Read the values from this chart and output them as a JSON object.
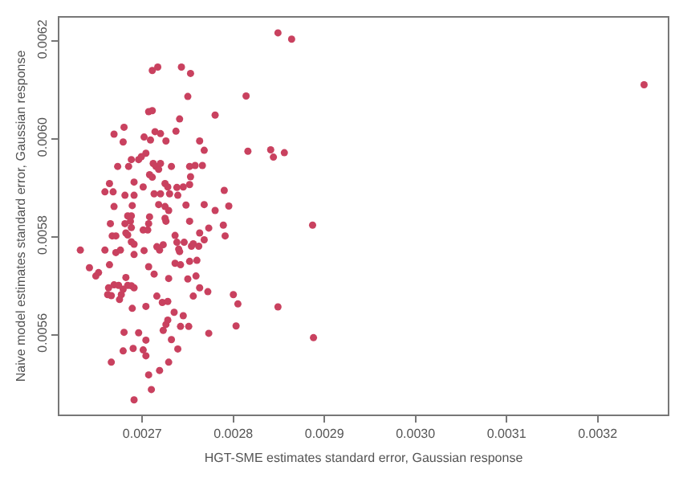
{
  "chart_data": {
    "type": "scatter",
    "xlabel": "HGT-SME estimates standard error, Gaussian response",
    "ylabel": "Naive model estimates standard error, Gaussian response",
    "xlim": [
      0.002609,
      0.003277
    ],
    "ylim": [
      0.005437,
      0.006248
    ],
    "xticks": [
      0.0027,
      0.0028,
      0.0029,
      {
        "value": 0.003,
        "label": "0.0030"
      },
      0.0031,
      0.0032
    ],
    "yticks": [
      0.0056,
      0.0058,
      {
        "value": 0.006,
        "label": "0.0060"
      },
      0.0062
    ],
    "marker": "circle",
    "series": [
      {
        "color": "#c9415f",
        "x": [
          0.002711,
          0.002717,
          0.002743,
          0.002753,
          0.00275,
          0.002814,
          0.002707,
          0.002711,
          0.00278,
          0.002741,
          0.002669,
          0.00268,
          0.002679,
          0.002702,
          0.002709,
          0.002714,
          0.00272,
          0.002726,
          0.002737,
          0.002763,
          0.002704,
          0.002768,
          0.002816,
          0.002688,
          0.002696,
          0.002699,
          0.002685,
          0.002673,
          0.002712,
          0.002715,
          0.002718,
          0.00272,
          0.002732,
          0.002752,
          0.002758,
          0.002766,
          0.002708,
          0.002711,
          0.002691,
          0.002664,
          0.002659,
          0.002668,
          0.002701,
          0.002725,
          0.002728,
          0.002738,
          0.002745,
          0.002752,
          0.002753,
          0.002681,
          0.002691,
          0.002713,
          0.00272,
          0.00279,
          0.00273,
          0.002739,
          0.002669,
          0.002689,
          0.002718,
          0.002725,
          0.002729,
          0.002748,
          0.002768,
          0.002795,
          0.002684,
          0.002688,
          0.002725,
          0.002708,
          0.002665,
          0.002681,
          0.002687,
          0.002707,
          0.002726,
          0.002752,
          0.00278,
          0.002789,
          0.002701,
          0.002706,
          0.002667,
          0.002671,
          0.002682,
          0.002736,
          0.002763,
          0.002773,
          0.002791,
          0.002849,
          0.002864,
          0.003251,
          0.002841,
          0.002844,
          0.002856,
          0.002887,
          0.002849,
          0.002888,
          0.002632,
          0.002642,
          0.002649,
          0.002652,
          0.002659,
          0.002664,
          0.002671,
          0.002676,
          0.002684,
          0.002688,
          0.002691,
          0.002691,
          0.002688,
          0.002702,
          0.002707,
          0.002713,
          0.002716,
          0.002719,
          0.002723,
          0.002738,
          0.00274,
          0.002736,
          0.002742,
          0.002741,
          0.002746,
          0.002754,
          0.002756,
          0.002762,
          0.002768,
          0.002752,
          0.00276,
          0.002729,
          0.00275,
          0.002759,
          0.002763,
          0.002772,
          0.002756,
          0.002663,
          0.002662,
          0.002666,
          0.002669,
          0.002674,
          0.002677,
          0.002675,
          0.002679,
          0.002682,
          0.002684,
          0.002688,
          0.002691,
          0.002689,
          0.002704,
          0.002716,
          0.002722,
          0.002728,
          0.002728,
          0.002726,
          0.002723,
          0.002735,
          0.002745,
          0.002742,
          0.002751,
          0.002773,
          0.0028,
          0.002805,
          0.002803,
          0.00268,
          0.002696,
          0.002704,
          0.002679,
          0.00269,
          0.002701,
          0.002704,
          0.002666,
          0.002729,
          0.002732,
          0.002739,
          0.002719,
          0.002707,
          0.00271,
          0.002691
        ],
        "values": [
          0.00614,
          0.006147,
          0.006147,
          0.006134,
          0.006087,
          0.006088,
          0.006056,
          0.006058,
          0.006049,
          0.006041,
          0.00601,
          0.006024,
          0.005994,
          0.006004,
          0.005998,
          0.006015,
          0.006011,
          0.005996,
          0.006016,
          0.005996,
          0.005971,
          0.005977,
          0.005975,
          0.005958,
          0.005958,
          0.005964,
          0.005944,
          0.005944,
          0.00595,
          0.005944,
          0.005938,
          0.00595,
          0.005944,
          0.005944,
          0.005946,
          0.005946,
          0.005927,
          0.005922,
          0.005912,
          0.005909,
          0.005892,
          0.005892,
          0.005902,
          0.005909,
          0.005902,
          0.005901,
          0.005902,
          0.005907,
          0.005923,
          0.005885,
          0.005885,
          0.005888,
          0.005888,
          0.005895,
          0.005888,
          0.005885,
          0.005862,
          0.005864,
          0.005866,
          0.005862,
          0.005854,
          0.005865,
          0.005866,
          0.005863,
          0.005843,
          0.005843,
          0.005838,
          0.005841,
          0.005827,
          0.005827,
          0.005832,
          0.005827,
          0.005832,
          0.005832,
          0.005854,
          0.005824,
          0.005814,
          0.005814,
          0.005802,
          0.005802,
          0.005808,
          0.005803,
          0.005808,
          0.005818,
          0.005802,
          0.006217,
          0.006204,
          0.006111,
          0.005978,
          0.005963,
          0.005972,
          0.005824,
          0.005657,
          0.005594,
          0.005773,
          0.005737,
          0.00572,
          0.005727,
          0.005773,
          0.005743,
          0.005768,
          0.005773,
          0.005804,
          0.00579,
          0.005764,
          0.005785,
          0.005819,
          0.005772,
          0.005739,
          0.005724,
          0.00578,
          0.005773,
          0.005784,
          0.005789,
          0.005775,
          0.005746,
          0.005743,
          0.00577,
          0.005789,
          0.005781,
          0.005786,
          0.005781,
          0.005794,
          0.00575,
          0.005752,
          0.005715,
          0.005714,
          0.00572,
          0.005696,
          0.005688,
          0.005679,
          0.005696,
          0.005682,
          0.00568,
          0.005702,
          0.005701,
          0.005682,
          0.005672,
          0.005693,
          0.005717,
          0.005701,
          0.0057,
          0.005696,
          0.005654,
          0.005658,
          0.005679,
          0.005666,
          0.005668,
          0.00563,
          0.005621,
          0.005609,
          0.005646,
          0.005639,
          0.005617,
          0.005617,
          0.005603,
          0.005682,
          0.005663,
          0.005618,
          0.005605,
          0.005604,
          0.005589,
          0.005567,
          0.005572,
          0.005569,
          0.005557,
          0.005544,
          0.005544,
          0.00559,
          0.005571,
          0.005527,
          0.005518,
          0.005488,
          0.005467
        ]
      }
    ]
  }
}
